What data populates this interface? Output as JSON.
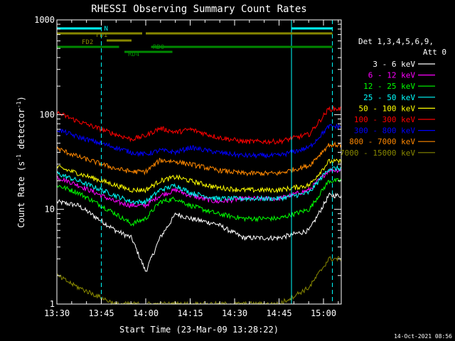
{
  "chart_data": {
    "type": "line",
    "title": "RHESSI Observing Summary Count Rates",
    "xlabel": "Start Time (23-Mar-09 13:28:22)",
    "ylabel_main": "Count Rate (s",
    "ylabel_sup1": "-1",
    "ylabel_mid": " detector",
    "ylabel_sup2": "-1",
    "ylabel_end": ")",
    "x_range_minutes": [
      13.5,
      15.1
    ],
    "yscale": "log",
    "ylim": [
      1,
      1000
    ],
    "x_ticks": [
      "13:30",
      "13:45",
      "14:00",
      "14:15",
      "14:30",
      "14:45",
      "15:00"
    ],
    "y_ticks": [
      "1",
      "10",
      "100",
      "1000"
    ],
    "legend_header": [
      "Det 1,3,4,5,6,9,",
      "Att 0"
    ],
    "legend_position": "right",
    "timestamp": "14-Oct-2021 08:56",
    "series": [
      {
        "name": "3 - 6 keV",
        "color": "#ffffff",
        "values": [
          12,
          11,
          6,
          5,
          2.2,
          5,
          9,
          8,
          7,
          5,
          5,
          6,
          14
        ]
      },
      {
        "name": "6 - 12 keV",
        "color": "#ff00ff",
        "values": [
          22,
          18,
          12,
          11,
          11,
          14,
          16,
          14,
          12,
          13,
          13,
          16,
          26
        ]
      },
      {
        "name": "12 - 25 keV",
        "color": "#00ff00",
        "values": [
          18,
          15,
          9,
          7,
          8,
          12,
          13,
          11,
          9,
          8,
          8,
          10,
          20
        ]
      },
      {
        "name": "25 - 50 keV",
        "color": "#00ffff",
        "values": [
          24,
          20,
          14,
          12,
          12,
          16,
          18,
          15,
          13,
          13,
          13,
          15,
          27
        ]
      },
      {
        "name": "50 - 100 keV",
        "color": "#ffff00",
        "values": [
          28,
          24,
          18,
          16,
          16,
          20,
          22,
          20,
          17,
          16,
          16,
          18,
          32
        ]
      },
      {
        "name": "100 - 300 keV",
        "color": "#ff0000",
        "values": [
          105,
          85,
          62,
          55,
          60,
          72,
          65,
          70,
          58,
          52,
          52,
          62,
          115
        ]
      },
      {
        "name": "300 - 800 keV",
        "color": "#0000ff",
        "values": [
          70,
          58,
          45,
          40,
          38,
          42,
          40,
          45,
          40,
          37,
          37,
          45,
          75
        ]
      },
      {
        "name": "800 - 7000 keV",
        "color": "#ff8800",
        "values": [
          44,
          36,
          27,
          25,
          25,
          33,
          32,
          30,
          26,
          24,
          24,
          29,
          48
        ]
      },
      {
        "name": "7000 - 15000 keV",
        "color": "#888800",
        "values": [
          2,
          1.5,
          1,
          1,
          1,
          1,
          1,
          1,
          1,
          1,
          1,
          1.5,
          3
        ]
      }
    ],
    "series_x_minutes": [
      13.5,
      13.62,
      13.83,
      13.92,
      14.0,
      14.08,
      14.17,
      14.25,
      14.4,
      14.55,
      14.75,
      14.92,
      15.03
    ],
    "flags": [
      {
        "label": "N",
        "color": "#00ffff",
        "segments": [
          [
            13.5,
            13.75
          ],
          [
            14.82,
            15.05
          ]
        ],
        "y_level": 40
      },
      {
        "label": "FD1",
        "color": "#888800",
        "segments": [
          [
            13.5,
            13.98
          ],
          [
            14.0,
            15.05
          ]
        ],
        "y_level": 47
      },
      {
        "label": "FD2",
        "color": "#888800",
        "segments": [
          [
            13.78,
            13.92
          ]
        ],
        "y_level": 57
      },
      {
        "label": "RD0",
        "color": "#008800",
        "segments": [
          [
            13.5,
            13.85
          ],
          [
            14.03,
            15.05
          ]
        ],
        "y_level": 66
      },
      {
        "label": "RD4",
        "color": "#008800",
        "segments": [
          [
            13.88,
            14.15
          ]
        ],
        "y_level": 73
      }
    ],
    "vertical_markers": [
      {
        "minute": 13.5,
        "style": "solid",
        "color": "#00ffff"
      },
      {
        "minute": 13.75,
        "style": "dashed",
        "color": "#00ffff"
      },
      {
        "minute": 14.82,
        "style": "solid",
        "color": "#00ffff"
      },
      {
        "minute": 15.05,
        "style": "dashed",
        "color": "#00ffff"
      }
    ]
  }
}
